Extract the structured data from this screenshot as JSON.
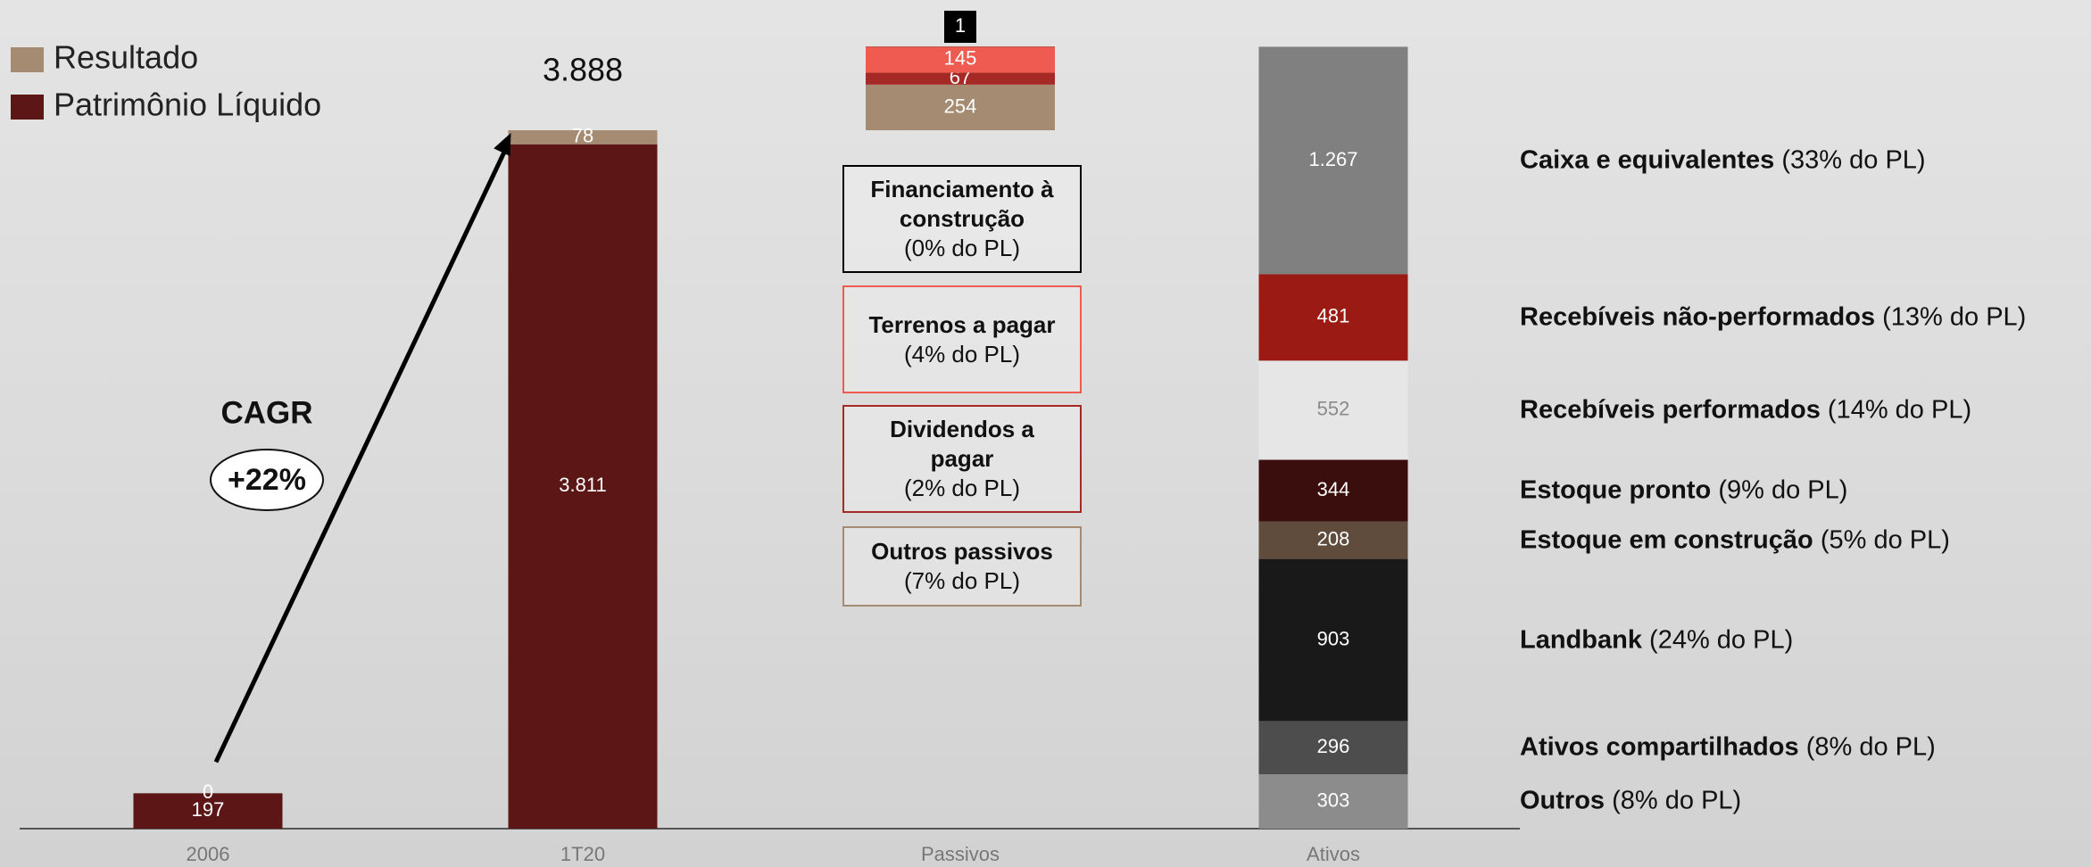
{
  "chart_data": {
    "type": "stacked-bar",
    "legend": [
      {
        "name": "Resultado",
        "color": "#a58b72"
      },
      {
        "name": "Patrimônio Líquido",
        "color": "#5c1616"
      }
    ],
    "categories": [
      "2006",
      "1T20",
      "Passivos",
      "Ativos"
    ],
    "stacks": [
      [
        {
          "value": 197,
          "color": "#5c1616"
        },
        {
          "value": 0,
          "color": "#a58b72"
        }
      ],
      [
        {
          "value": 3811,
          "value_label": "3.811",
          "color": "#5c1616"
        },
        {
          "value": 78,
          "color": "#a58b72"
        }
      ],
      [
        {
          "value": 254,
          "color": "#a58b72",
          "name": "Outros passivos",
          "note": "(7% do PL)"
        },
        {
          "value": 67,
          "color": "#a52a25",
          "name": "Dividendos a pagar",
          "note": "(2% do PL)"
        },
        {
          "value": 145,
          "color": "#ef5b50",
          "name": "Terrenos a pagar",
          "note": "(4% do PL)"
        },
        {
          "value": 1,
          "color": "#000000",
          "name": "Financiamento à construção",
          "note": "(0% do PL)"
        }
      ],
      [
        {
          "value": 303,
          "color": "#8c8c8c",
          "name": "Outros",
          "note": "(8% do PL)"
        },
        {
          "value": 296,
          "color": "#4d4d4d",
          "name": "Ativos compartilhados",
          "note": "(8% do PL)"
        },
        {
          "value": 903,
          "color": "#191919",
          "name": "Landbank",
          "note": "(24% do PL)"
        },
        {
          "value": 208,
          "color": "#5f4c3d",
          "name": "Estoque em construção",
          "note": "(5% do PL)"
        },
        {
          "value": 344,
          "color": "#3a0e0c",
          "name": "Estoque pronto",
          "note": "(9% do PL)"
        },
        {
          "value": 552,
          "color": "#e6e6e6",
          "text_color": "#8a8a8a",
          "name": "Recebíveis performados",
          "note": "(14% do PL)"
        },
        {
          "value": 481,
          "color": "#9b1a14",
          "name": "Recebíveis não-performados",
          "note": "(13% do PL)"
        },
        {
          "value": 1267,
          "value_label": "1.267",
          "color": "#808080",
          "name": "Caixa e equivalentes",
          "note": "(33% do PL)"
        }
      ]
    ],
    "total": 3888,
    "total_label": "3.888",
    "cagr": {
      "label": "CAGR",
      "value": 22,
      "value_label": "+22%"
    }
  }
}
